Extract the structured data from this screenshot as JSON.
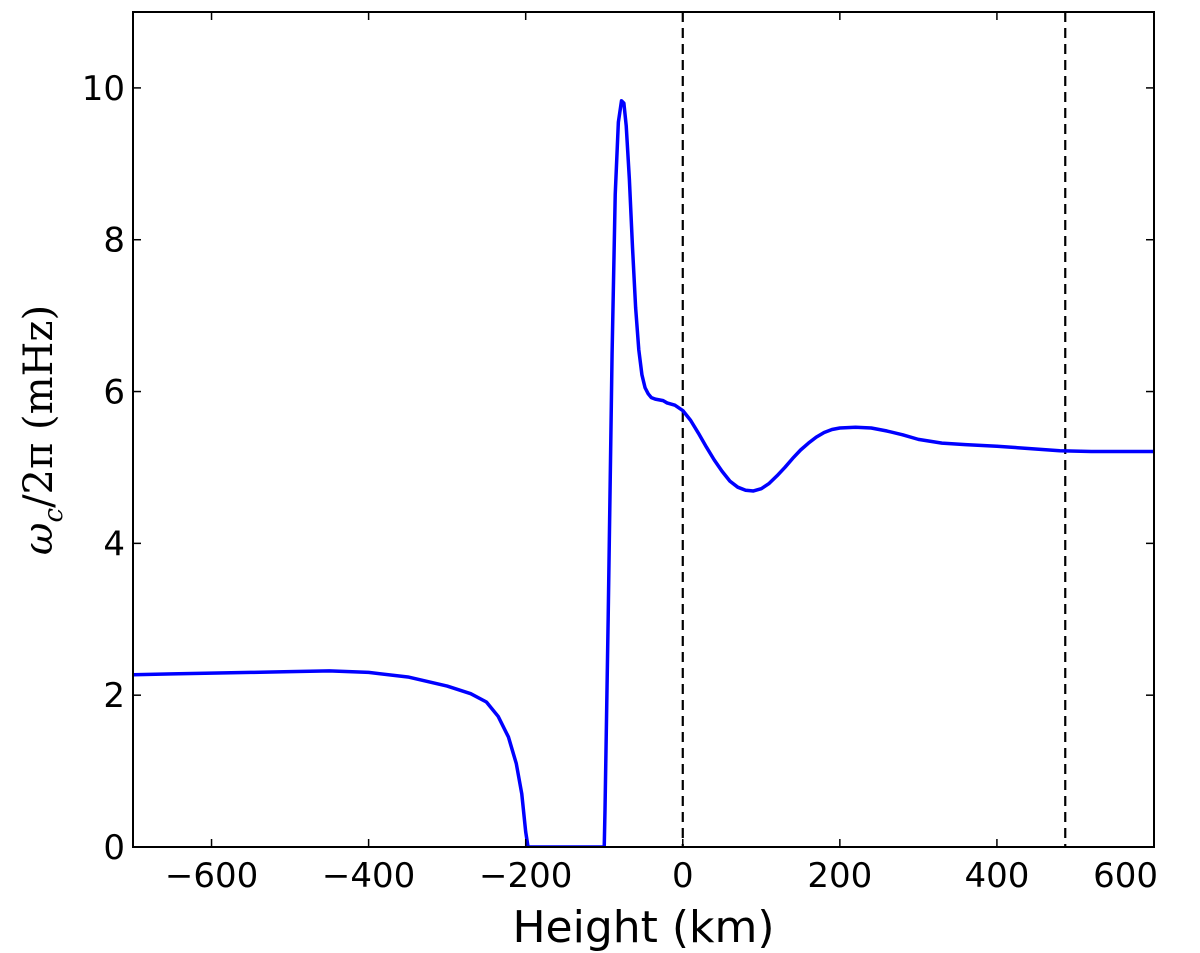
{
  "chart_data": {
    "type": "line",
    "xlabel": "Height (km)",
    "ylabel": "ω_c/2π (mHz)",
    "ylabel_parts": {
      "omega": "ω",
      "sub": "c",
      "rest": "/2π (mHz)"
    },
    "xlim": [
      -700,
      600
    ],
    "ylim": [
      0,
      11
    ],
    "xticks": [
      -600,
      -400,
      -200,
      0,
      200,
      400,
      600
    ],
    "xtick_labels": [
      "−600",
      "−400",
      "−200",
      "0",
      "200",
      "400",
      "600"
    ],
    "yticks": [
      0,
      2,
      4,
      6,
      8,
      10
    ],
    "ytick_labels": [
      "0",
      "2",
      "4",
      "6",
      "8",
      "10"
    ],
    "grid": false,
    "vlines": [
      {
        "x": 0,
        "style": "dashed",
        "color": "#000000"
      },
      {
        "x": 487,
        "style": "dashed",
        "color": "#000000"
      }
    ],
    "series": [
      {
        "color": "#0000ff",
        "x": [
          -700,
          -650,
          -600,
          -550,
          -500,
          -450,
          -400,
          -350,
          -300,
          -270,
          -250,
          -235,
          -222,
          -212,
          -205,
          -200,
          -197,
          -196,
          -150,
          -100,
          -99,
          -95,
          -90,
          -86,
          -82,
          -78,
          -75,
          -72,
          -68,
          -64,
          -60,
          -56,
          -52,
          -48,
          -44,
          -40,
          -35,
          -30,
          -25,
          -20,
          -10,
          0,
          10,
          20,
          30,
          40,
          50,
          60,
          70,
          80,
          90,
          100,
          110,
          120,
          130,
          140,
          150,
          160,
          170,
          180,
          190,
          200,
          220,
          240,
          260,
          280,
          300,
          330,
          360,
          400,
          440,
          480,
          520,
          560,
          600
        ],
        "y": [
          2.27,
          2.28,
          2.29,
          2.3,
          2.31,
          2.32,
          2.3,
          2.24,
          2.12,
          2.02,
          1.91,
          1.72,
          1.45,
          1.1,
          0.7,
          0.2,
          0.0,
          0.0,
          0.0,
          0.0,
          0.5,
          3.0,
          6.5,
          8.6,
          9.55,
          9.83,
          9.8,
          9.5,
          8.8,
          7.9,
          7.1,
          6.55,
          6.22,
          6.05,
          5.97,
          5.92,
          5.9,
          5.89,
          5.88,
          5.85,
          5.82,
          5.75,
          5.62,
          5.45,
          5.27,
          5.1,
          4.95,
          4.82,
          4.74,
          4.7,
          4.69,
          4.72,
          4.79,
          4.89,
          5.0,
          5.12,
          5.23,
          5.32,
          5.4,
          5.46,
          5.5,
          5.52,
          5.53,
          5.52,
          5.48,
          5.43,
          5.37,
          5.32,
          5.3,
          5.28,
          5.25,
          5.22,
          5.21,
          5.21,
          5.21
        ]
      }
    ]
  }
}
